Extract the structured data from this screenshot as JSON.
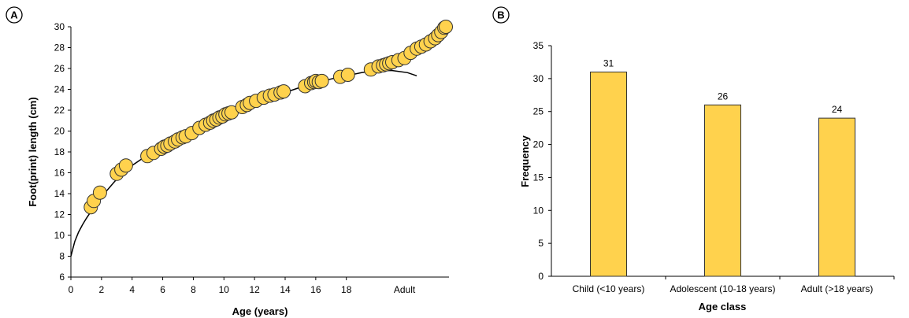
{
  "chart_data": [
    {
      "panel_label": "A",
      "type": "scatter",
      "xlabel": "Age (years)",
      "ylabel": "Foot(print) length (cm)",
      "xlim": [
        0,
        24.5
      ],
      "ylim": [
        6,
        30
      ],
      "xticks": [
        0,
        2,
        4,
        6,
        8,
        10,
        12,
        14,
        16,
        18
      ],
      "xtick_labels": [
        "0",
        "2",
        "4",
        "6",
        "8",
        "10",
        "12",
        "14",
        "16",
        "18"
      ],
      "yticks": [
        6,
        8,
        10,
        12,
        14,
        16,
        18,
        20,
        22,
        24,
        26,
        28,
        30
      ],
      "adult_label": "Adult",
      "adult_label_x": 21.8,
      "colors": {
        "marker_fill": "#FFD24D",
        "marker_edge": "#333333",
        "curve": "#000000"
      },
      "points": [
        [
          1.3,
          12.7
        ],
        [
          1.5,
          13.3
        ],
        [
          1.9,
          14.1
        ],
        [
          3.0,
          15.9
        ],
        [
          3.3,
          16.3
        ],
        [
          3.6,
          16.7
        ],
        [
          5.0,
          17.6
        ],
        [
          5.4,
          17.9
        ],
        [
          5.9,
          18.3
        ],
        [
          6.1,
          18.5
        ],
        [
          6.3,
          18.6
        ],
        [
          6.5,
          18.8
        ],
        [
          6.8,
          19.0
        ],
        [
          7.0,
          19.2
        ],
        [
          7.3,
          19.4
        ],
        [
          7.5,
          19.5
        ],
        [
          7.9,
          19.8
        ],
        [
          8.4,
          20.3
        ],
        [
          8.8,
          20.6
        ],
        [
          9.1,
          20.8
        ],
        [
          9.3,
          21.0
        ],
        [
          9.5,
          21.1
        ],
        [
          9.7,
          21.3
        ],
        [
          9.9,
          21.4
        ],
        [
          10.1,
          21.6
        ],
        [
          10.3,
          21.7
        ],
        [
          10.5,
          21.8
        ],
        [
          11.2,
          22.3
        ],
        [
          11.5,
          22.5
        ],
        [
          11.7,
          22.7
        ],
        [
          12.1,
          22.9
        ],
        [
          12.6,
          23.2
        ],
        [
          13.0,
          23.4
        ],
        [
          13.3,
          23.5
        ],
        [
          13.7,
          23.7
        ],
        [
          13.9,
          23.8
        ],
        [
          15.3,
          24.3
        ],
        [
          15.7,
          24.6
        ],
        [
          15.9,
          24.7
        ],
        [
          16.0,
          24.8
        ],
        [
          16.2,
          24.7
        ],
        [
          16.4,
          24.8
        ],
        [
          17.6,
          25.2
        ],
        [
          18.1,
          25.4
        ],
        [
          19.6,
          25.9
        ],
        [
          20.1,
          26.2
        ],
        [
          20.4,
          26.3
        ],
        [
          20.6,
          26.4
        ],
        [
          20.8,
          26.5
        ],
        [
          21.0,
          26.6
        ],
        [
          21.4,
          26.8
        ],
        [
          21.8,
          27.0
        ],
        [
          22.2,
          27.5
        ],
        [
          22.6,
          27.9
        ],
        [
          22.9,
          28.1
        ],
        [
          23.2,
          28.3
        ],
        [
          23.5,
          28.6
        ],
        [
          23.8,
          28.9
        ],
        [
          24.0,
          29.2
        ],
        [
          24.2,
          29.5
        ],
        [
          24.4,
          29.9
        ],
        [
          24.5,
          30.0
        ]
      ],
      "trend": [
        [
          0.0,
          8.0
        ],
        [
          0.25,
          9.4
        ],
        [
          0.5,
          10.3
        ],
        [
          0.75,
          11.0
        ],
        [
          1.0,
          11.6
        ],
        [
          1.5,
          12.7
        ],
        [
          2.0,
          13.7
        ],
        [
          3.0,
          15.4
        ],
        [
          4.0,
          16.7
        ],
        [
          5.0,
          17.7
        ],
        [
          6.0,
          18.6
        ],
        [
          7.0,
          19.4
        ],
        [
          8.0,
          20.1
        ],
        [
          9.0,
          20.8
        ],
        [
          10.0,
          21.5
        ],
        [
          11.0,
          22.1
        ],
        [
          12.0,
          22.7
        ],
        [
          13.0,
          23.2
        ],
        [
          14.0,
          23.7
        ],
        [
          15.0,
          24.2
        ],
        [
          16.0,
          24.6
        ],
        [
          17.0,
          25.0
        ],
        [
          18.0,
          25.3
        ],
        [
          19.0,
          25.6
        ],
        [
          20.0,
          25.8
        ],
        [
          21.0,
          25.8
        ],
        [
          22.0,
          25.6
        ],
        [
          22.6,
          25.3
        ]
      ]
    },
    {
      "panel_label": "B",
      "type": "bar",
      "xlabel": "Age class",
      "ylabel": "Frequency",
      "ylim": [
        0,
        35
      ],
      "yticks": [
        0,
        5,
        10,
        15,
        20,
        25,
        30,
        35
      ],
      "categories": [
        "Child (<10 years)",
        "Adolescent (10-18 years)",
        "Adult (>18 years)"
      ],
      "values": [
        31,
        26,
        24
      ],
      "value_labels": [
        "31",
        "26",
        "24"
      ],
      "colors": {
        "bar_fill": "#FFD24D",
        "bar_edge": "#333333"
      }
    }
  ]
}
